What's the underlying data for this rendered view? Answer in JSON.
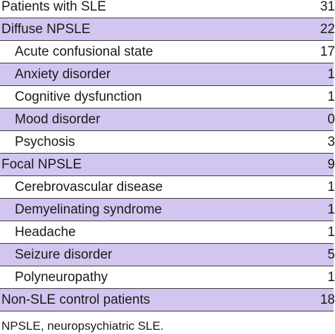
{
  "table": {
    "rows": [
      {
        "label": "Patients with SLE",
        "value": 31
      },
      {
        "label": "Diffuse NPSLE",
        "value": 22,
        "subrows": [
          {
            "label": "Acute confusional state",
            "value": 17
          },
          {
            "label": "Anxiety disorder",
            "value": 1
          },
          {
            "label": "Cognitive dysfunction",
            "value": 1
          },
          {
            "label": "Mood disorder",
            "value": 0
          },
          {
            "label": "Psychosis",
            "value": 3
          }
        ]
      },
      {
        "label": "Focal NPSLE",
        "value": 9,
        "subrows": [
          {
            "label": "Cerebrovascular disease",
            "value": 1
          },
          {
            "label": "Demyelinating syndrome",
            "value": 1
          },
          {
            "label": "Headache",
            "value": 1
          },
          {
            "label": "Seizure disorder",
            "value": 5
          },
          {
            "label": "Polyneuropathy",
            "value": 1
          }
        ]
      },
      {
        "label": "Non-SLE control patients",
        "value": 18
      }
    ]
  },
  "footnote": "NPSLE, neuropsychiatric SLE."
}
